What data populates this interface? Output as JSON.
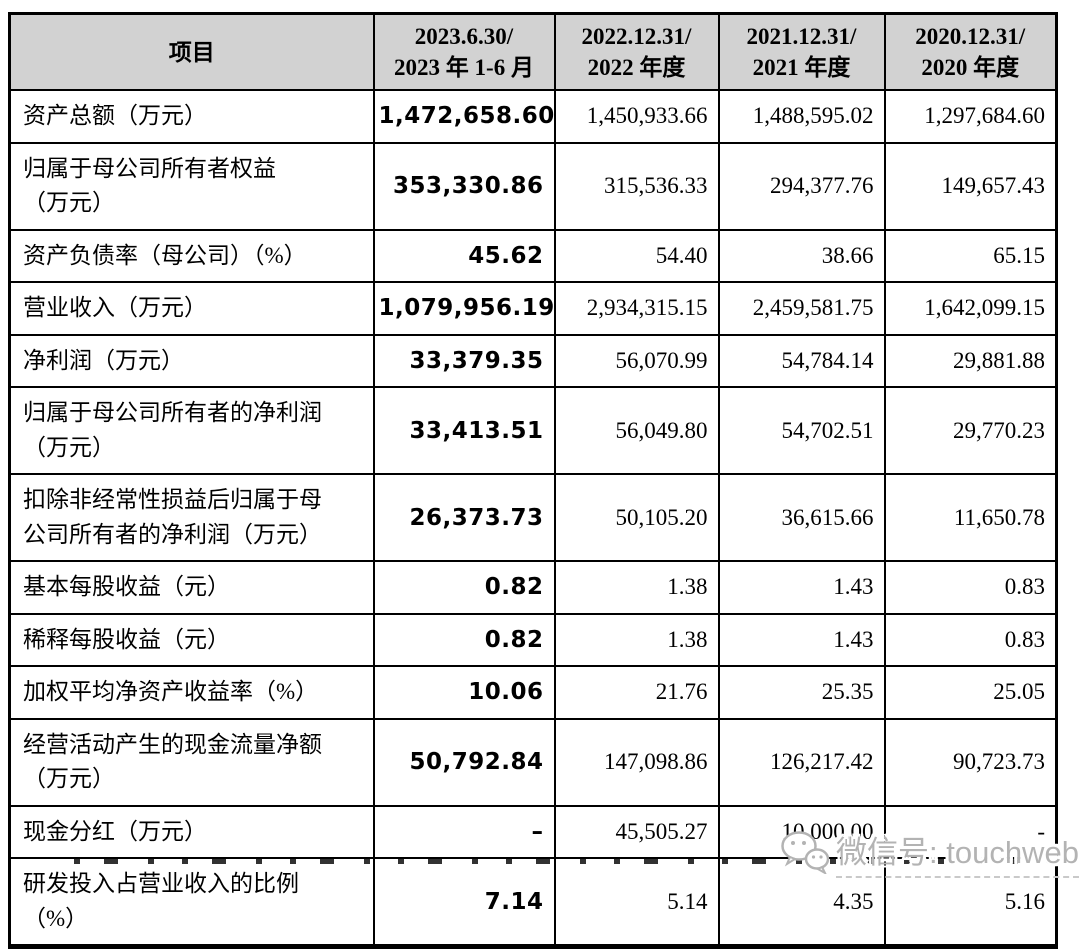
{
  "table": {
    "header": {
      "item_label": "项目",
      "periods": [
        "2023.6.30/\n2023 年 1-6 月",
        "2022.12.31/\n2022 年度",
        "2021.12.31/\n2021 年度",
        "2020.12.31/\n2020 年度"
      ]
    },
    "rows": [
      {
        "label": "资产总额（万元）",
        "values": [
          "1,472,658.60",
          "1,450,933.66",
          "1,488,595.02",
          "1,297,684.60"
        ]
      },
      {
        "label": "归属于母公司所有者权益\n（万元）",
        "values": [
          "353,330.86",
          "315,536.33",
          "294,377.76",
          "149,657.43"
        ]
      },
      {
        "label": "资产负债率（母公司）（%）",
        "values": [
          "45.62",
          "54.40",
          "38.66",
          "65.15"
        ]
      },
      {
        "label": "营业收入（万元）",
        "values": [
          "1,079,956.19",
          "2,934,315.15",
          "2,459,581.75",
          "1,642,099.15"
        ]
      },
      {
        "label": "净利润（万元）",
        "values": [
          "33,379.35",
          "56,070.99",
          "54,784.14",
          "29,881.88"
        ]
      },
      {
        "label": "归属于母公司所有者的净利润\n（万元）",
        "values": [
          "33,413.51",
          "56,049.80",
          "54,702.51",
          "29,770.23"
        ]
      },
      {
        "label": "扣除非经常性损益后归属于母\n公司所有者的净利润（万元）",
        "values": [
          "26,373.73",
          "50,105.20",
          "36,615.66",
          "11,650.78"
        ]
      },
      {
        "label": "基本每股收益（元）",
        "values": [
          "0.82",
          "1.38",
          "1.43",
          "0.83"
        ]
      },
      {
        "label": "稀释每股收益（元）",
        "values": [
          "0.82",
          "1.38",
          "1.43",
          "0.83"
        ]
      },
      {
        "label": "加权平均净资产收益率（%）",
        "values": [
          "10.06",
          "21.76",
          "25.35",
          "25.05"
        ]
      },
      {
        "label": "经营活动产生的现金流量净额\n（万元）",
        "values": [
          "50,792.84",
          "147,098.86",
          "126,217.42",
          "90,723.73"
        ]
      },
      {
        "label": "现金分红（万元）",
        "values": [
          "–",
          "45,505.27",
          "10,000.00",
          "-"
        ]
      },
      {
        "label": "研发投入占营业收入的比例\n（%）",
        "values": [
          "7.14",
          "5.14",
          "4.35",
          "5.16"
        ]
      }
    ]
  },
  "watermark": {
    "icon": "wechat-icon",
    "label": "微信号: touchweb"
  },
  "colors": {
    "header_bg": "#d2d2d2",
    "border": "#000000",
    "watermark_gray": "#b3b3b3"
  }
}
